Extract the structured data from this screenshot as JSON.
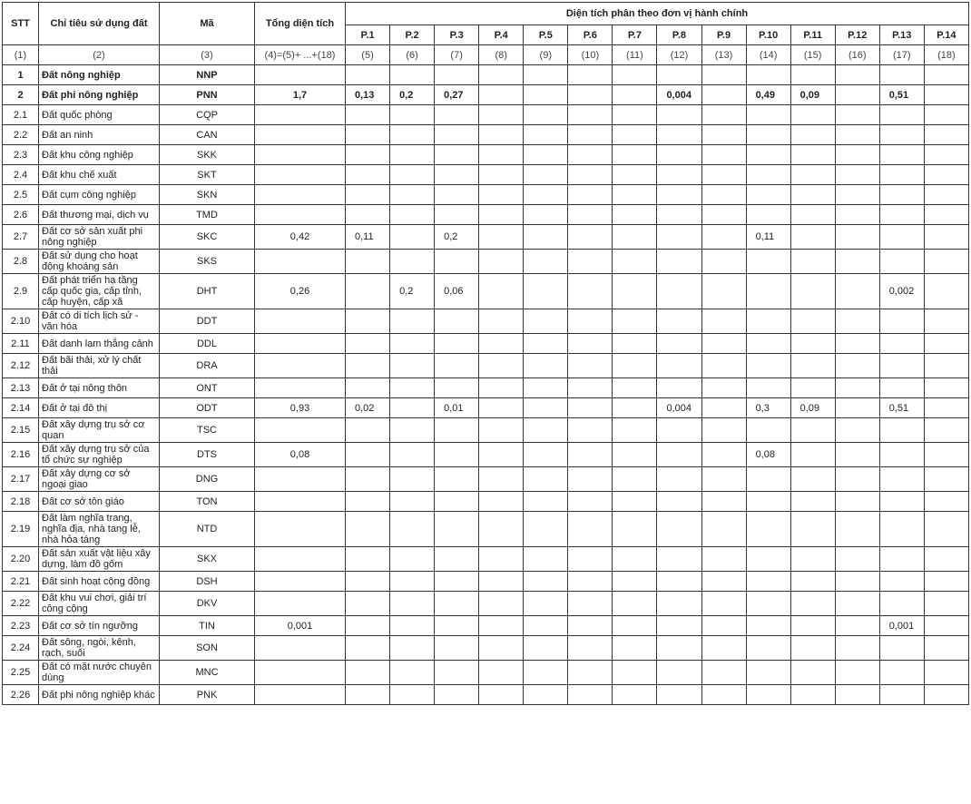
{
  "header": {
    "stt": "STT",
    "name": "Chỉ tiêu sử dụng đất",
    "code": "Mã",
    "total": "Tổng diện tích",
    "group": "Diện tích phân theo đơn vị hành chính",
    "units": [
      "P.1",
      "P.2",
      "P.3",
      "P.4",
      "P.5",
      "P.6",
      "P.7",
      "P.8",
      "P.9",
      "P.10",
      "P.11",
      "P.12",
      "P.13",
      "P.14"
    ],
    "index_row": [
      "(1)",
      "(2)",
      "(3)",
      "(4)=(5)+ ...+(18)",
      "(5)",
      "(6)",
      "(7)",
      "(8)",
      "(9)",
      "(10)",
      "(11)",
      "(12)",
      "(13)",
      "(14)",
      "(15)",
      "(16)",
      "(17)",
      "(18)"
    ]
  },
  "rows": [
    {
      "stt": "1",
      "name": "Đất nông nghiệp",
      "code": "NNP",
      "bold": true,
      "total": "",
      "values": [
        "",
        "",
        "",
        "",
        "",
        "",
        "",
        "",
        "",
        "",
        "",
        "",
        "",
        ""
      ]
    },
    {
      "stt": "2",
      "name": "Đất phi nông nghiệp",
      "code": "PNN",
      "bold": true,
      "total": "1,7",
      "values": [
        "0,13",
        "0,2",
        "0,27",
        "",
        "",
        "",
        "",
        "0,004",
        "",
        "0,49",
        "0,09",
        "",
        "0,51",
        ""
      ]
    },
    {
      "stt": "2.1",
      "name": "Đất quốc phòng",
      "code": "CQP",
      "total": "",
      "values": [
        "",
        "",
        "",
        "",
        "",
        "",
        "",
        "",
        "",
        "",
        "",
        "",
        "",
        ""
      ]
    },
    {
      "stt": "2.2",
      "name": "Đất an ninh",
      "code": "CAN",
      "total": "",
      "values": [
        "",
        "",
        "",
        "",
        "",
        "",
        "",
        "",
        "",
        "",
        "",
        "",
        "",
        ""
      ]
    },
    {
      "stt": "2.3",
      "name": "Đất khu công nghiệp",
      "code": "SKK",
      "total": "",
      "values": [
        "",
        "",
        "",
        "",
        "",
        "",
        "",
        "",
        "",
        "",
        "",
        "",
        "",
        ""
      ]
    },
    {
      "stt": "2.4",
      "name": "Đất khu chế xuất",
      "code": "SKT",
      "total": "",
      "values": [
        "",
        "",
        "",
        "",
        "",
        "",
        "",
        "",
        "",
        "",
        "",
        "",
        "",
        ""
      ]
    },
    {
      "stt": "2.5",
      "name": "Đất cụm công nghiệp",
      "code": "SKN",
      "total": "",
      "values": [
        "",
        "",
        "",
        "",
        "",
        "",
        "",
        "",
        "",
        "",
        "",
        "",
        "",
        ""
      ]
    },
    {
      "stt": "2.6",
      "name": "Đất thương mại, dịch vụ",
      "code": "TMD",
      "total": "",
      "values": [
        "",
        "",
        "",
        "",
        "",
        "",
        "",
        "",
        "",
        "",
        "",
        "",
        "",
        ""
      ]
    },
    {
      "stt": "2.7",
      "name": "Đất cơ sở sản xuất phi nông nghiệp",
      "code": "SKC",
      "total": "0,42",
      "values": [
        "0,11",
        "",
        "0,2",
        "",
        "",
        "",
        "",
        "",
        "",
        "0,11",
        "",
        "",
        "",
        ""
      ]
    },
    {
      "stt": "2.8",
      "name": "Đất sử dụng cho hoạt động khoáng sản",
      "code": "SKS",
      "total": "",
      "values": [
        "",
        "",
        "",
        "",
        "",
        "",
        "",
        "",
        "",
        "",
        "",
        "",
        "",
        ""
      ]
    },
    {
      "stt": "2.9",
      "name": "Đất phát triển hạ tầng cấp quốc gia, cấp tỉnh, cấp huyện, cấp xã",
      "code": "DHT",
      "total": "0,26",
      "values": [
        "",
        "0,2",
        "0,06",
        "",
        "",
        "",
        "",
        "",
        "",
        "",
        "",
        "",
        "0,002",
        ""
      ]
    },
    {
      "stt": "2.10",
      "name": "Đất có di tích lịch sử - văn hóa",
      "code": "DDT",
      "total": "",
      "values": [
        "",
        "",
        "",
        "",
        "",
        "",
        "",
        "",
        "",
        "",
        "",
        "",
        "",
        ""
      ]
    },
    {
      "stt": "2.11",
      "name": "Đất danh lam thắng cảnh",
      "code": "DDL",
      "total": "",
      "values": [
        "",
        "",
        "",
        "",
        "",
        "",
        "",
        "",
        "",
        "",
        "",
        "",
        "",
        ""
      ]
    },
    {
      "stt": "2.12",
      "name": "Đất bãi thải, xử lý chất thải",
      "code": "DRA",
      "total": "",
      "values": [
        "",
        "",
        "",
        "",
        "",
        "",
        "",
        "",
        "",
        "",
        "",
        "",
        "",
        ""
      ]
    },
    {
      "stt": "2.13",
      "name": "Đất ở tại nông thôn",
      "code": "ONT",
      "total": "",
      "values": [
        "",
        "",
        "",
        "",
        "",
        "",
        "",
        "",
        "",
        "",
        "",
        "",
        "",
        ""
      ]
    },
    {
      "stt": "2.14",
      "name": "Đất ở tại đô thị",
      "code": "ODT",
      "total": "0,93",
      "values": [
        "0,02",
        "",
        "0,01",
        "",
        "",
        "",
        "",
        "0,004",
        "",
        "0,3",
        "0,09",
        "",
        "0,51",
        ""
      ]
    },
    {
      "stt": "2.15",
      "name": "Đất xây dựng trụ sở cơ quan",
      "code": "TSC",
      "total": "",
      "values": [
        "",
        "",
        "",
        "",
        "",
        "",
        "",
        "",
        "",
        "",
        "",
        "",
        "",
        ""
      ]
    },
    {
      "stt": "2.16",
      "name": "Đất xây dựng trụ sở của tổ chức sự nghiệp",
      "code": "DTS",
      "total": "0,08",
      "values": [
        "",
        "",
        "",
        "",
        "",
        "",
        "",
        "",
        "",
        "0,08",
        "",
        "",
        "",
        ""
      ]
    },
    {
      "stt": "2.17",
      "name": "Đất xây dựng cơ sở ngoại giao",
      "code": "DNG",
      "total": "",
      "values": [
        "",
        "",
        "",
        "",
        "",
        "",
        "",
        "",
        "",
        "",
        "",
        "",
        "",
        ""
      ]
    },
    {
      "stt": "2.18",
      "name": "Đất cơ sở tôn giáo",
      "code": "TON",
      "total": "",
      "values": [
        "",
        "",
        "",
        "",
        "",
        "",
        "",
        "",
        "",
        "",
        "",
        "",
        "",
        ""
      ]
    },
    {
      "stt": "2.19",
      "name": "Đất làm nghĩa trang, nghĩa địa, nhà tang lễ, nhà hỏa táng",
      "code": "NTD",
      "total": "",
      "values": [
        "",
        "",
        "",
        "",
        "",
        "",
        "",
        "",
        "",
        "",
        "",
        "",
        "",
        ""
      ]
    },
    {
      "stt": "2.20",
      "name": "Đất sản xuất vật liệu xây dựng, làm đồ gốm",
      "code": "SKX",
      "total": "",
      "values": [
        "",
        "",
        "",
        "",
        "",
        "",
        "",
        "",
        "",
        "",
        "",
        "",
        "",
        ""
      ]
    },
    {
      "stt": "2.21",
      "name": "Đất sinh hoạt cộng đồng",
      "code": "DSH",
      "total": "",
      "values": [
        "",
        "",
        "",
        "",
        "",
        "",
        "",
        "",
        "",
        "",
        "",
        "",
        "",
        ""
      ]
    },
    {
      "stt": "2.22",
      "name": "Đất khu vui chơi, giải trí công cộng",
      "code": "DKV",
      "total": "",
      "values": [
        "",
        "",
        "",
        "",
        "",
        "",
        "",
        "",
        "",
        "",
        "",
        "",
        "",
        ""
      ]
    },
    {
      "stt": "2.23",
      "name": "Đất cơ sở tín ngưỡng",
      "code": "TIN",
      "total": "0,001",
      "values": [
        "",
        "",
        "",
        "",
        "",
        "",
        "",
        "",
        "",
        "",
        "",
        "",
        "0,001",
        ""
      ]
    },
    {
      "stt": "2.24",
      "name": "Đất sông, ngòi, kênh, rạch, suối",
      "code": "SON",
      "total": "",
      "values": [
        "",
        "",
        "",
        "",
        "",
        "",
        "",
        "",
        "",
        "",
        "",
        "",
        "",
        ""
      ]
    },
    {
      "stt": "2.25",
      "name": "Đất có mặt nước chuyên dùng",
      "code": "MNC",
      "total": "",
      "values": [
        "",
        "",
        "",
        "",
        "",
        "",
        "",
        "",
        "",
        "",
        "",
        "",
        "",
        ""
      ]
    },
    {
      "stt": "2.26",
      "name": "Đất phi nông nghiệp khác",
      "code": "PNK",
      "total": "",
      "values": [
        "",
        "",
        "",
        "",
        "",
        "",
        "",
        "",
        "",
        "",
        "",
        "",
        "",
        ""
      ]
    }
  ]
}
